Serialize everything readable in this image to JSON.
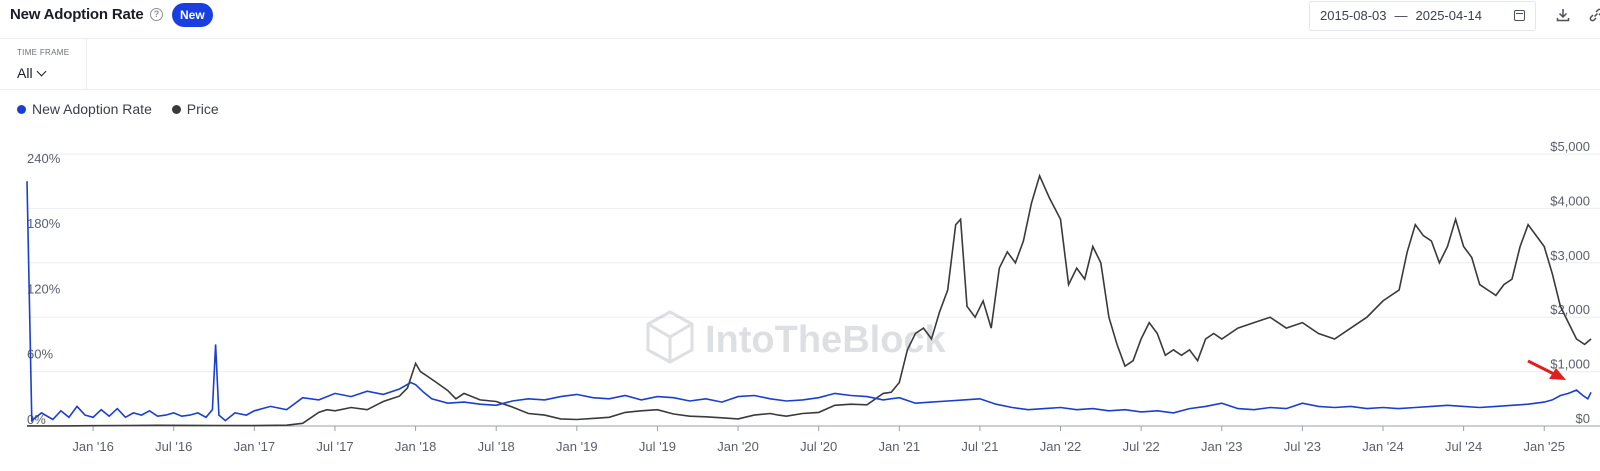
{
  "header": {
    "title": "New Adoption Rate",
    "badge": "New",
    "date_start": "2015-08-03",
    "date_sep": "—",
    "date_end": "2025-04-14"
  },
  "timeframe": {
    "label": "TIME FRAME",
    "value": "All"
  },
  "icons": [
    "help-icon",
    "calendar-icon",
    "download-icon",
    "share-icon"
  ],
  "colors": {
    "adoption": "#1a3fd0",
    "price": "#3a3a3a",
    "badge": "#1a3fe0",
    "grid": "#eceef2",
    "arrow": "#e02020"
  },
  "watermark": "IntoTheBlock",
  "chart_data": {
    "type": "line",
    "legend": [
      "New Adoption Rate",
      "Price"
    ],
    "x_ticks": [
      "Jan '16",
      "Jul '16",
      "Jan '17",
      "Jul '17",
      "Jan '18",
      "Jul '18",
      "Jan '19",
      "Jul '19",
      "Jan '20",
      "Jul '20",
      "Jan '21",
      "Jul '21",
      "Jan '22",
      "Jul '22",
      "Jan '23",
      "Jul '23",
      "Jan '24",
      "Jul '24",
      "Jan '25"
    ],
    "x_tick_dates": [
      2016.0,
      2016.5,
      2017.0,
      2017.5,
      2018.0,
      2018.5,
      2019.0,
      2019.5,
      2020.0,
      2020.5,
      2021.0,
      2021.5,
      2022.0,
      2022.5,
      2023.0,
      2023.5,
      2024.0,
      2024.5,
      2025.0
    ],
    "xlim": [
      2015.59,
      2025.29
    ],
    "y_left": {
      "ticks": [
        "0%",
        "60%",
        "120%",
        "180%",
        "240%"
      ],
      "values": [
        0,
        60,
        120,
        180,
        240
      ],
      "lim": [
        0,
        250
      ]
    },
    "y_right": {
      "ticks": [
        "$0",
        "$1,000",
        "$2,000",
        "$3,000",
        "$4,000",
        "$5,000"
      ],
      "values": [
        0,
        1000,
        2000,
        3000,
        4000,
        5000
      ],
      "lim": [
        0,
        5000
      ]
    },
    "series": [
      {
        "name": "New Adoption Rate",
        "axis": "left",
        "x": [
          2015.59,
          2015.62,
          2015.68,
          2015.75,
          2015.8,
          2015.85,
          2015.9,
          2015.95,
          2016.0,
          2016.05,
          2016.1,
          2016.15,
          2016.2,
          2016.25,
          2016.3,
          2016.35,
          2016.4,
          2016.45,
          2016.5,
          2016.55,
          2016.6,
          2016.65,
          2016.7,
          2016.74,
          2016.76,
          2016.78,
          2016.82,
          2016.88,
          2016.95,
          2017.0,
          2017.1,
          2017.2,
          2017.3,
          2017.4,
          2017.5,
          2017.6,
          2017.7,
          2017.8,
          2017.9,
          2017.97,
          2018.0,
          2018.05,
          2018.1,
          2018.2,
          2018.3,
          2018.4,
          2018.5,
          2018.6,
          2018.7,
          2018.8,
          2018.9,
          2019.0,
          2019.1,
          2019.2,
          2019.3,
          2019.4,
          2019.5,
          2019.6,
          2019.7,
          2019.8,
          2019.9,
          2020.0,
          2020.1,
          2020.2,
          2020.3,
          2020.4,
          2020.5,
          2020.6,
          2020.7,
          2020.8,
          2020.9,
          2021.0,
          2021.1,
          2021.2,
          2021.3,
          2021.4,
          2021.5,
          2021.6,
          2021.7,
          2021.8,
          2021.9,
          2022.0,
          2022.1,
          2022.2,
          2022.3,
          2022.4,
          2022.5,
          2022.6,
          2022.7,
          2022.8,
          2022.9,
          2023.0,
          2023.1,
          2023.2,
          2023.3,
          2023.4,
          2023.5,
          2023.6,
          2023.7,
          2023.8,
          2023.9,
          2024.0,
          2024.1,
          2024.2,
          2024.3,
          2024.4,
          2024.5,
          2024.6,
          2024.7,
          2024.8,
          2024.9,
          2025.0,
          2025.05,
          2025.1,
          2025.15,
          2025.2,
          2025.24,
          2025.27,
          2025.29
        ],
        "y": [
          225,
          5,
          12,
          6,
          14,
          8,
          18,
          10,
          8,
          15,
          9,
          16,
          8,
          12,
          10,
          14,
          9,
          10,
          12,
          9,
          10,
          12,
          8,
          15,
          75,
          10,
          5,
          12,
          10,
          14,
          18,
          15,
          26,
          24,
          30,
          27,
          32,
          29,
          34,
          40,
          38,
          31,
          25,
          21,
          22,
          20,
          19,
          23,
          25,
          24,
          27,
          29,
          26,
          25,
          28,
          24,
          27,
          26,
          23,
          25,
          22,
          27,
          28,
          25,
          23,
          24,
          26,
          30,
          28,
          27,
          24,
          26,
          21,
          22,
          23,
          24,
          25,
          20,
          17,
          15,
          16,
          17,
          15,
          16,
          14,
          15,
          13,
          14,
          12,
          16,
          18,
          21,
          16,
          15,
          17,
          16,
          21,
          18,
          17,
          18,
          16,
          17,
          16,
          17,
          18,
          19,
          18,
          17,
          18,
          19,
          20,
          22,
          24,
          28,
          30,
          33,
          28,
          25,
          31
        ]
      },
      {
        "name": "Price",
        "axis": "right",
        "x": [
          2015.59,
          2015.8,
          2016.0,
          2016.2,
          2016.4,
          2016.6,
          2016.8,
          2017.0,
          2017.2,
          2017.3,
          2017.4,
          2017.45,
          2017.5,
          2017.6,
          2017.7,
          2017.8,
          2017.85,
          2017.9,
          2017.95,
          2018.0,
          2018.03,
          2018.08,
          2018.12,
          2018.2,
          2018.25,
          2018.3,
          2018.4,
          2018.5,
          2018.6,
          2018.7,
          2018.8,
          2018.9,
          2019.0,
          2019.1,
          2019.2,
          2019.3,
          2019.4,
          2019.5,
          2019.6,
          2019.7,
          2019.8,
          2019.9,
          2020.0,
          2020.1,
          2020.2,
          2020.25,
          2020.3,
          2020.4,
          2020.5,
          2020.6,
          2020.7,
          2020.8,
          2020.9,
          2020.95,
          2021.0,
          2021.05,
          2021.1,
          2021.15,
          2021.2,
          2021.25,
          2021.3,
          2021.35,
          2021.38,
          2021.42,
          2021.47,
          2021.52,
          2021.57,
          2021.62,
          2021.67,
          2021.72,
          2021.77,
          2021.82,
          2021.87,
          2021.93,
          2022.0,
          2022.05,
          2022.1,
          2022.15,
          2022.2,
          2022.25,
          2022.3,
          2022.35,
          2022.4,
          2022.45,
          2022.5,
          2022.55,
          2022.6,
          2022.65,
          2022.7,
          2022.75,
          2022.8,
          2022.85,
          2022.9,
          2022.95,
          2023.0,
          2023.1,
          2023.2,
          2023.3,
          2023.4,
          2023.5,
          2023.6,
          2023.7,
          2023.8,
          2023.9,
          2024.0,
          2024.05,
          2024.1,
          2024.15,
          2024.2,
          2024.25,
          2024.3,
          2024.35,
          2024.4,
          2024.45,
          2024.5,
          2024.55,
          2024.6,
          2024.65,
          2024.7,
          2024.75,
          2024.8,
          2024.85,
          2024.9,
          2024.95,
          2025.0,
          2025.05,
          2025.1,
          2025.15,
          2025.2,
          2025.25,
          2025.29
        ],
        "y": [
          1,
          1,
          5,
          10,
          12,
          11,
          10,
          8,
          15,
          50,
          250,
          300,
          280,
          340,
          300,
          450,
          500,
          550,
          700,
          1150,
          1000,
          900,
          820,
          650,
          500,
          600,
          480,
          450,
          350,
          230,
          200,
          130,
          120,
          140,
          160,
          250,
          280,
          300,
          220,
          180,
          170,
          150,
          130,
          200,
          230,
          200,
          180,
          230,
          250,
          380,
          400,
          390,
          600,
          620,
          800,
          1400,
          1700,
          1800,
          1600,
          2100,
          2500,
          3700,
          3800,
          2200,
          2000,
          2300,
          1800,
          2900,
          3200,
          3000,
          3400,
          4100,
          4600,
          4200,
          3800,
          2600,
          2900,
          2700,
          3300,
          3000,
          2000,
          1500,
          1100,
          1200,
          1600,
          1900,
          1700,
          1300,
          1400,
          1300,
          1400,
          1200,
          1600,
          1700,
          1600,
          1800,
          1900,
          2000,
          1800,
          1900,
          1700,
          1600,
          1800,
          2000,
          2300,
          2400,
          2500,
          3200,
          3700,
          3500,
          3400,
          3000,
          3300,
          3800,
          3300,
          3100,
          2600,
          2500,
          2400,
          2600,
          2700,
          3300,
          3700,
          3500,
          3300,
          2800,
          2200,
          1900,
          1600,
          1500,
          1600
        ]
      }
    ]
  }
}
